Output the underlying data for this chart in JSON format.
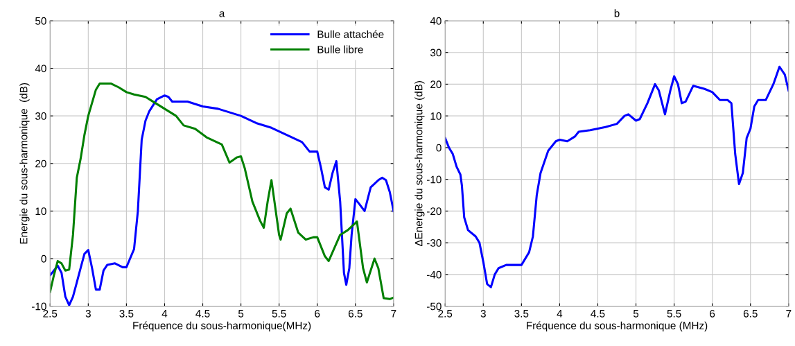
{
  "chart_data": [
    {
      "type": "line",
      "title": "a",
      "xlabel": "Fréquence du sous-harmonique(MHz)",
      "ylabel": "Energie du sous-harmonique  (dB)",
      "xlim": [
        2.5,
        7
      ],
      "xticks": [
        2.5,
        3,
        3.5,
        4,
        4.5,
        5,
        5.5,
        6,
        6.5,
        7
      ],
      "ylim": [
        -10,
        50
      ],
      "yticks": [
        -10,
        0,
        10,
        20,
        30,
        40,
        50
      ],
      "grid": true,
      "legend": "top right",
      "series": [
        {
          "name": "Bulle attachée",
          "color": "#0000ff",
          "x": [
            2.5,
            2.55,
            2.6,
            2.65,
            2.7,
            2.75,
            2.8,
            2.85,
            2.9,
            2.95,
            3.0,
            3.05,
            3.1,
            3.15,
            3.2,
            3.25,
            3.35,
            3.45,
            3.5,
            3.6,
            3.65,
            3.7,
            3.75,
            3.8,
            3.9,
            4.0,
            4.05,
            4.1,
            4.3,
            4.5,
            4.7,
            5.0,
            5.2,
            5.4,
            5.6,
            5.8,
            5.9,
            6.0,
            6.05,
            6.1,
            6.15,
            6.2,
            6.25,
            6.3,
            6.35,
            6.38,
            6.42,
            6.45,
            6.5,
            6.55,
            6.62,
            6.7,
            6.8,
            6.85,
            6.9,
            6.95,
            7.0
          ],
          "values": [
            -3.5,
            -2.5,
            -1.5,
            -3,
            -8,
            -9.8,
            -8,
            -5,
            -2,
            1,
            1.8,
            -2,
            -6.5,
            -6.5,
            -2.5,
            -1.3,
            -1,
            -1.8,
            -1.8,
            2,
            10,
            25,
            29,
            31,
            33.5,
            34.3,
            34,
            33,
            33,
            32,
            31.5,
            30,
            28.5,
            27.5,
            26,
            24.5,
            22.5,
            22.5,
            19,
            15,
            14.5,
            18,
            20.5,
            12,
            -3,
            -5.5,
            -2,
            5,
            12.5,
            11.5,
            10,
            15,
            16.5,
            17,
            16.5,
            14,
            10
          ]
        },
        {
          "name": "Bulle libre",
          "color": "#008000",
          "x": [
            2.5,
            2.55,
            2.6,
            2.65,
            2.7,
            2.75,
            2.8,
            2.85,
            2.9,
            2.95,
            3.0,
            3.1,
            3.15,
            3.3,
            3.4,
            3.5,
            3.6,
            3.75,
            3.85,
            4.0,
            4.15,
            4.25,
            4.4,
            4.55,
            4.75,
            4.85,
            4.95,
            5.0,
            5.05,
            5.15,
            5.25,
            5.3,
            5.35,
            5.4,
            5.5,
            5.52,
            5.6,
            5.65,
            5.75,
            5.85,
            5.95,
            6.0,
            6.1,
            6.15,
            6.3,
            6.4,
            6.5,
            6.52,
            6.6,
            6.65,
            6.75,
            6.8,
            6.87,
            6.95,
            7.0
          ],
          "values": [
            -7,
            -3.5,
            -0.5,
            -1,
            -2.5,
            -2.3,
            5,
            17,
            21,
            26,
            30,
            35.5,
            36.8,
            36.8,
            36,
            35,
            34.5,
            34,
            33,
            31.5,
            30,
            28,
            27.3,
            25.5,
            24,
            20.2,
            21.3,
            21.5,
            19,
            12,
            8,
            6.5,
            12,
            16.5,
            5,
            4,
            9.5,
            10.5,
            5.5,
            4,
            4.5,
            4.5,
            0.5,
            -0.5,
            5,
            6,
            7.5,
            7.8,
            -2,
            -5,
            0,
            -2,
            -8.3,
            -8.5,
            -8.2
          ]
        }
      ]
    },
    {
      "type": "line",
      "title": "b",
      "xlabel": "Fréquence du sous-harmonique (MHz)",
      "ylabel": "ΔEnergie du sous-harmonique (dB)",
      "xlim": [
        2.5,
        7
      ],
      "xticks": [
        2.5,
        3,
        3.5,
        4,
        4.5,
        5,
        5.5,
        6,
        6.5,
        7
      ],
      "ylim": [
        -50,
        40
      ],
      "yticks": [
        -50,
        -40,
        -30,
        -20,
        -10,
        0,
        10,
        20,
        30,
        40
      ],
      "grid": true,
      "series": [
        {
          "color": "#0000ff",
          "x": [
            2.5,
            2.55,
            2.6,
            2.65,
            2.7,
            2.72,
            2.75,
            2.8,
            2.9,
            2.95,
            3.0,
            3.05,
            3.1,
            3.15,
            3.2,
            3.3,
            3.35,
            3.5,
            3.6,
            3.65,
            3.7,
            3.75,
            3.85,
            3.95,
            4.0,
            4.1,
            4.2,
            4.25,
            4.4,
            4.6,
            4.75,
            4.85,
            4.9,
            5.0,
            5.05,
            5.15,
            5.25,
            5.3,
            5.38,
            5.45,
            5.5,
            5.55,
            5.6,
            5.65,
            5.75,
            5.9,
            6.0,
            6.1,
            6.2,
            6.25,
            6.3,
            6.35,
            6.4,
            6.45,
            6.5,
            6.55,
            6.6,
            6.7,
            6.8,
            6.88,
            6.95,
            7.0
          ],
          "values": [
            3,
            0,
            -2,
            -6,
            -8.5,
            -12,
            -22,
            -26,
            -28,
            -30,
            -36,
            -43,
            -44,
            -40,
            -38,
            -37,
            -37,
            -37,
            -33,
            -28,
            -15,
            -8,
            -1,
            2,
            2.5,
            2,
            3.5,
            5,
            5.5,
            6.5,
            7.5,
            10,
            10.5,
            8.5,
            9,
            14,
            20,
            18,
            10.5,
            18,
            22.5,
            20,
            14,
            14.5,
            19.5,
            18.5,
            17.5,
            15,
            15,
            14,
            -2,
            -11.5,
            -8,
            3,
            6,
            13,
            15,
            15,
            20,
            25.5,
            23,
            18
          ]
        }
      ]
    }
  ]
}
